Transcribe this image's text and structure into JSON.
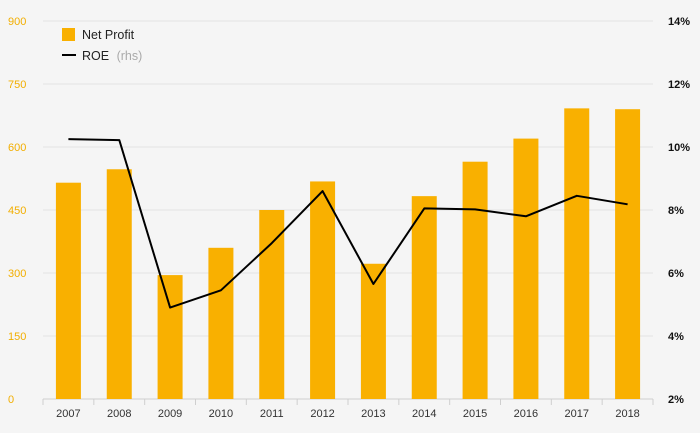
{
  "chart_data": {
    "type": "bar",
    "categories": [
      "2007",
      "2008",
      "2009",
      "2010",
      "2011",
      "2012",
      "2013",
      "2014",
      "2015",
      "2016",
      "2017",
      "2018"
    ],
    "series": [
      {
        "name": "Net Profit",
        "type": "bar",
        "axis": "left",
        "color": "#f9b000",
        "values": [
          515,
          547,
          295,
          360,
          450,
          518,
          322,
          483,
          565,
          620,
          692,
          690
        ]
      },
      {
        "name": "ROE",
        "type": "line",
        "axis": "right",
        "color": "#000000",
        "values": [
          10.25,
          10.22,
          4.9,
          5.45,
          6.95,
          8.6,
          5.65,
          8.05,
          8.02,
          7.8,
          8.45,
          8.18
        ]
      }
    ],
    "y_left": {
      "min": 0,
      "max": 900,
      "ticks": [
        "0",
        "150",
        "300",
        "450",
        "600",
        "750",
        "900"
      ],
      "color": "#f2ae00"
    },
    "y_right": {
      "min": 2,
      "max": 14,
      "ticks": [
        "2%",
        "4%",
        "6%",
        "8%",
        "10%",
        "12%",
        "14%"
      ]
    },
    "legend": {
      "position": "top-left",
      "items": [
        {
          "label": "Net Profit",
          "suffix": ""
        },
        {
          "label": "ROE",
          "suffix": "(rhs)"
        }
      ]
    },
    "grid": true
  }
}
